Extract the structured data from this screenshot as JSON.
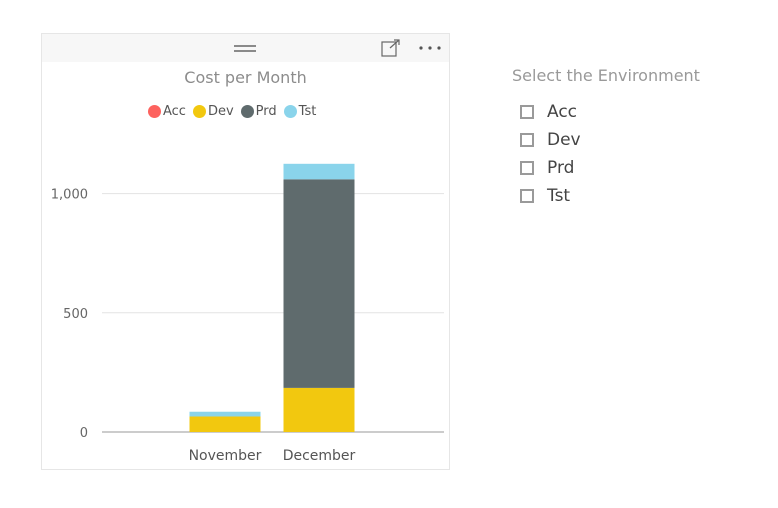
{
  "visual": {
    "menu_icon": "more-options-icon",
    "focus_icon": "focus-mode-icon",
    "drag_icon": "drag-handle-icon"
  },
  "chart_data": {
    "type": "bar",
    "stacked": true,
    "title": "Cost per Month",
    "categories": [
      "November",
      "December"
    ],
    "series": [
      {
        "name": "Acc",
        "color": "#fd625e",
        "values": [
          0,
          0
        ]
      },
      {
        "name": "Dev",
        "color": "#f2c80f",
        "values": [
          65,
          185
        ]
      },
      {
        "name": "Prd",
        "color": "#5f6b6d",
        "values": [
          0,
          875
        ]
      },
      {
        "name": "Tst",
        "color": "#8ad4eb",
        "values": [
          20,
          65
        ]
      }
    ],
    "yticks": [
      0,
      500,
      1000
    ],
    "ytick_labels": [
      "0",
      "500",
      "1,000"
    ],
    "ylim": [
      0,
      1250
    ],
    "grid": true,
    "legend_position": "top"
  },
  "slicer": {
    "title": "Select the Environment",
    "items": [
      "Acc",
      "Dev",
      "Prd",
      "Tst"
    ]
  }
}
